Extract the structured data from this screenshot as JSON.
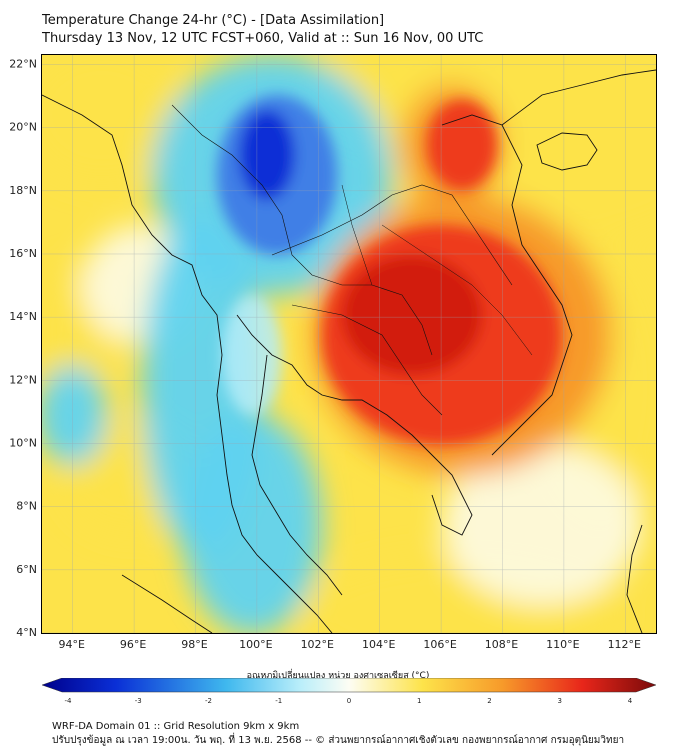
{
  "header": {
    "title_line1": "Temperature Change 24-hr (°C) - [Data Assimilation]",
    "title_line2": "Thursday 13 Nov, 12 UTC FCST+060, Valid at :: Sun 16 Nov, 00 UTC"
  },
  "map": {
    "lat_labels": [
      "22°N",
      "20°N",
      "18°N",
      "16°N",
      "14°N",
      "12°N",
      "10°N",
      "8°N",
      "6°N",
      "4°N"
    ],
    "lon_labels": [
      "94°E",
      "96°E",
      "98°E",
      "100°E",
      "102°E",
      "104°E",
      "106°E",
      "108°E",
      "110°E",
      "112°E"
    ],
    "lat_values": [
      22,
      20,
      18,
      16,
      14,
      12,
      10,
      8,
      6,
      4
    ],
    "lon_values": [
      94,
      96,
      98,
      100,
      102,
      104,
      106,
      108,
      110,
      112
    ],
    "lon_range": [
      93,
      113
    ],
    "lat_range": [
      4,
      22.3
    ],
    "colors": {
      "deep_blue": "#0a2fd6",
      "blue": "#3f7fe6",
      "cyan": "#5fd3f0",
      "light_cyan": "#b9eefa",
      "pale": "#fdfbe6",
      "yellow": "#fde34a",
      "orange": "#f79a2a",
      "red": "#ee3a1a",
      "dark_red": "#d21f10"
    }
  },
  "colorbar": {
    "caption": "อุณหภูมิเปลี่ยนแปลง หน่วย องศาเซลเซียส (°C)",
    "ticks": [
      "-4",
      "-3",
      "-2",
      "-1",
      "0",
      "1",
      "2",
      "3",
      "4"
    ],
    "tick_values": [
      -4,
      -3,
      -2,
      -1,
      0,
      1,
      2,
      3,
      4
    ]
  },
  "footer": {
    "line1": "WRF-DA Domain 01 :: Grid Resolution 9km x 9km",
    "line2": "ปรับปรุงข้อมูล ณ เวลา 19:00น. วัน พฤ. ที่ 13 พ.ย. 2568 -- © ส่วนพยากรณ์อากาศเชิงตัวเลข กองพยากรณ์อากาศ กรมอุตุนิยมวิทยา"
  }
}
